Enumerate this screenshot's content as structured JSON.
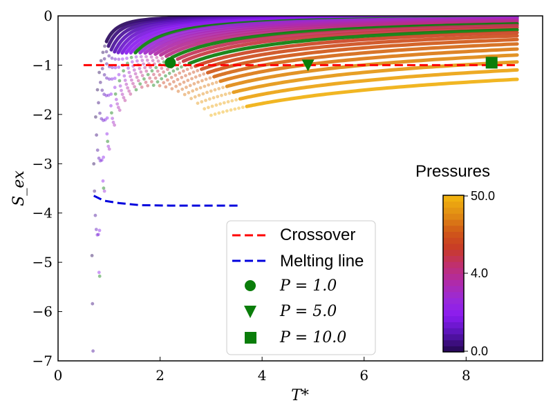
{
  "chart_data": {
    "type": "scatter",
    "xlabel": "T*",
    "ylabel": "S_ex",
    "xlim": [
      0,
      9.5
    ],
    "ylim": [
      -7,
      0
    ],
    "xticks": [
      0,
      2,
      4,
      6,
      8
    ],
    "yticks": [
      0,
      -1,
      -2,
      -3,
      -4,
      -5,
      -6,
      -7
    ],
    "xtick_labels": [
      "0",
      "2",
      "4",
      "6",
      "8"
    ],
    "ytick_labels": [
      "0",
      "−1",
      "−2",
      "−3",
      "−4",
      "−5",
      "−6",
      "−7"
    ],
    "crossover": {
      "name": "Crossover",
      "color": "#ff0000",
      "x": [
        0.5,
        9.0
      ],
      "y": [
        -1.0,
        -1.0
      ]
    },
    "melting_line": {
      "name": "Melting line",
      "color": "#0000dd",
      "x": [
        0.7,
        0.9,
        1.2,
        1.6,
        2.2,
        3.0,
        3.6
      ],
      "y": [
        -3.65,
        -3.75,
        -3.8,
        -3.84,
        -3.85,
        -3.85,
        -3.85
      ]
    },
    "isobars": {
      "pressures": [
        0.05,
        0.1,
        0.2,
        0.3,
        0.4,
        0.5,
        0.6,
        0.8,
        1.0,
        1.3,
        1.6,
        2.0,
        2.5,
        3.0,
        4.0,
        5.0,
        6.0,
        8.0,
        10.0,
        12.0,
        15.0,
        18.0,
        22.0,
        27.0,
        32.0,
        38.0,
        44.0,
        50.0
      ],
      "highlighted": [
        1.0,
        5.0,
        10.0
      ],
      "highlight_color": "#0a7d0a",
      "t_max": 9.0
    },
    "markers": [
      {
        "label": "P = 1.0",
        "shape": "circle",
        "x": 2.2,
        "y": -0.95,
        "color": "#0a7d0a"
      },
      {
        "label": "P = 5.0",
        "shape": "triangle-down",
        "x": 4.9,
        "y": -1.0,
        "color": "#0a7d0a"
      },
      {
        "label": "P = 10.0",
        "shape": "square",
        "x": 8.5,
        "y": -0.95,
        "color": "#0a7d0a"
      }
    ],
    "legend": {
      "placement": "lower-center",
      "entries": [
        {
          "kind": "line",
          "label": "Crossover",
          "color": "#ff0000"
        },
        {
          "kind": "line",
          "label": "Melting line",
          "color": "#0000dd"
        },
        {
          "kind": "circle",
          "label": "P = 1.0",
          "color": "#0a7d0a"
        },
        {
          "kind": "triangle-down",
          "label": "P = 5.0",
          "color": "#0a7d0a"
        },
        {
          "kind": "square",
          "label": "P = 10.0",
          "color": "#0a7d0a"
        }
      ]
    },
    "colorbar": {
      "title": "Pressures",
      "tick_labels": [
        "50.0",
        "4.0",
        "0.0"
      ],
      "colors": [
        "#2b0a5e",
        "#5a14b8",
        "#8a1cf0",
        "#9a2ad8",
        "#b02aa8",
        "#c03070",
        "#c83a28",
        "#d05818",
        "#e08a14",
        "#f0b010"
      ]
    }
  }
}
